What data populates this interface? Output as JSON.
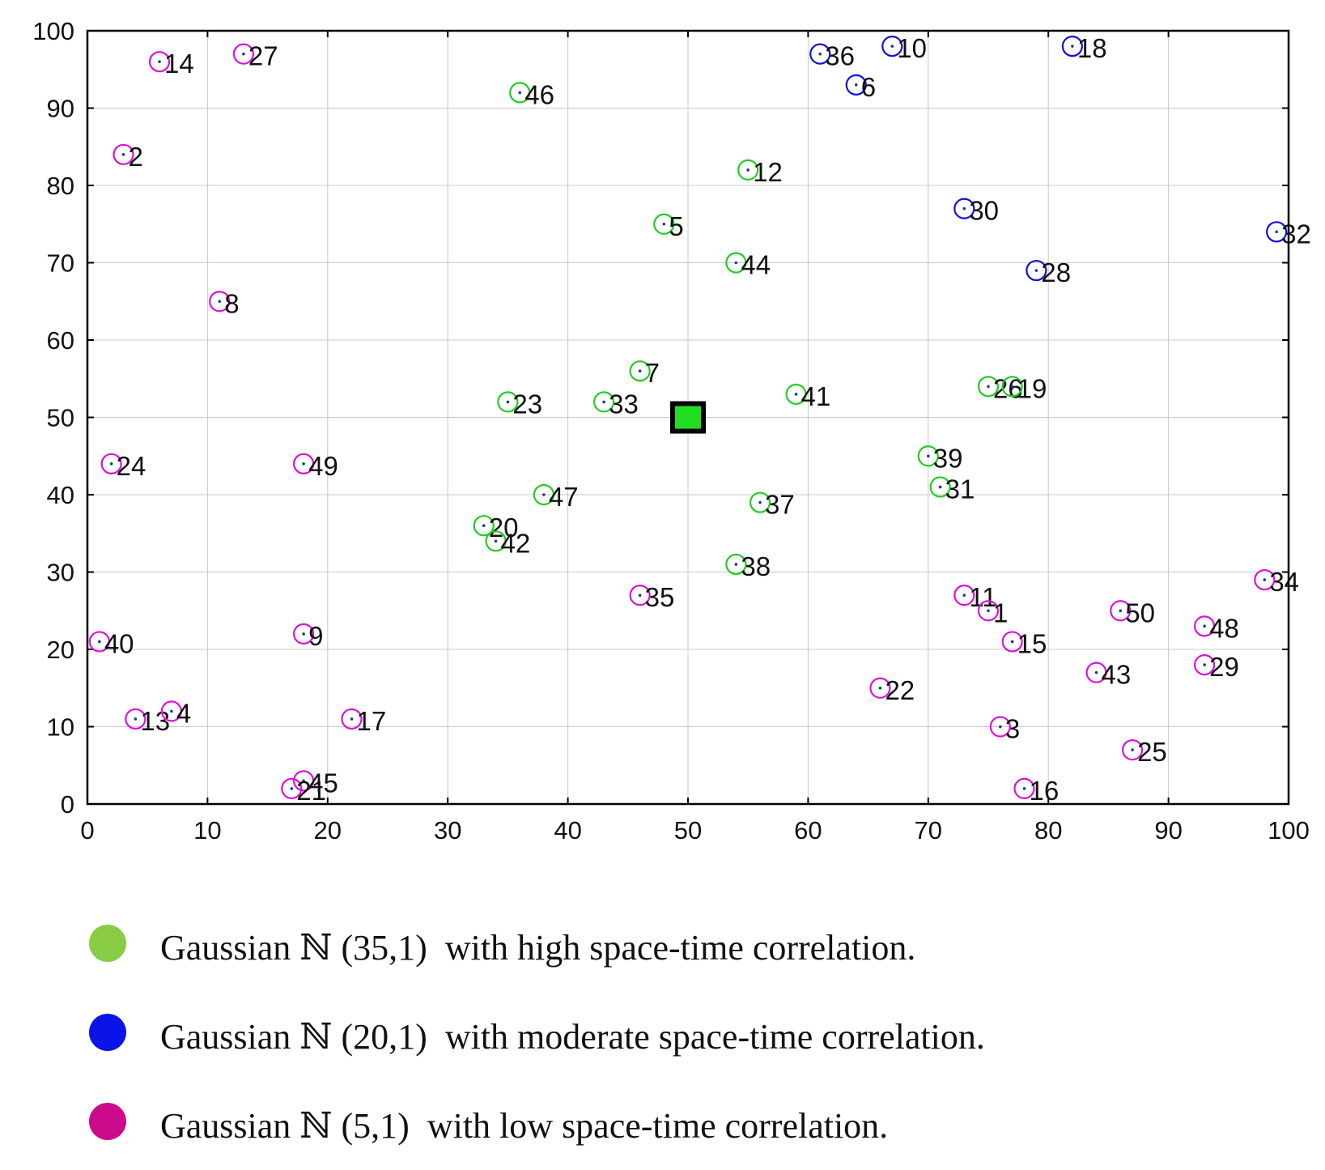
{
  "chart_data": {
    "type": "scatter",
    "xlim": [
      0,
      100
    ],
    "ylim": [
      0,
      100
    ],
    "xticks": [
      0,
      10,
      20,
      30,
      40,
      50,
      60,
      70,
      80,
      90,
      100
    ],
    "yticks": [
      0,
      10,
      20,
      30,
      40,
      50,
      60,
      70,
      80,
      90,
      100
    ],
    "grid": true,
    "sink": {
      "x": 50,
      "y": 50,
      "marker": "square",
      "color": "#22dd22"
    },
    "series": [
      {
        "name": "high",
        "color": "#22cc22",
        "points": [
          {
            "id": "46",
            "x": 36,
            "y": 92
          },
          {
            "id": "12",
            "x": 55,
            "y": 82
          },
          {
            "id": "5",
            "x": 48,
            "y": 75
          },
          {
            "id": "44",
            "x": 54,
            "y": 70
          },
          {
            "id": "7",
            "x": 46,
            "y": 56
          },
          {
            "id": "23",
            "x": 35,
            "y": 52
          },
          {
            "id": "33",
            "x": 43,
            "y": 52
          },
          {
            "id": "41",
            "x": 59,
            "y": 53
          },
          {
            "id": "26",
            "x": 75,
            "y": 54
          },
          {
            "id": "19",
            "x": 77,
            "y": 54
          },
          {
            "id": "39",
            "x": 70,
            "y": 45
          },
          {
            "id": "31",
            "x": 71,
            "y": 41
          },
          {
            "id": "47",
            "x": 38,
            "y": 40
          },
          {
            "id": "37",
            "x": 56,
            "y": 39
          },
          {
            "id": "20",
            "x": 33,
            "y": 36
          },
          {
            "id": "42",
            "x": 34,
            "y": 34
          },
          {
            "id": "38",
            "x": 54,
            "y": 31
          }
        ]
      },
      {
        "name": "moderate",
        "color": "#1111dd",
        "points": [
          {
            "id": "10",
            "x": 67,
            "y": 98
          },
          {
            "id": "18",
            "x": 82,
            "y": 98
          },
          {
            "id": "36",
            "x": 61,
            "y": 97
          },
          {
            "id": "6",
            "x": 64,
            "y": 93
          },
          {
            "id": "30",
            "x": 73,
            "y": 77
          },
          {
            "id": "32",
            "x": 99,
            "y": 74
          },
          {
            "id": "28",
            "x": 79,
            "y": 69
          }
        ]
      },
      {
        "name": "low",
        "color": "#dd11dd",
        "points": [
          {
            "id": "14",
            "x": 6,
            "y": 96
          },
          {
            "id": "27",
            "x": 13,
            "y": 97
          },
          {
            "id": "2",
            "x": 3,
            "y": 84
          },
          {
            "id": "8",
            "x": 11,
            "y": 65
          },
          {
            "id": "24",
            "x": 2,
            "y": 44
          },
          {
            "id": "49",
            "x": 18,
            "y": 44
          },
          {
            "id": "40",
            "x": 1,
            "y": 21
          },
          {
            "id": "9",
            "x": 18,
            "y": 22
          },
          {
            "id": "35",
            "x": 46,
            "y": 27
          },
          {
            "id": "13",
            "x": 4,
            "y": 11
          },
          {
            "id": "4",
            "x": 7,
            "y": 12
          },
          {
            "id": "17",
            "x": 22,
            "y": 11
          },
          {
            "id": "45",
            "x": 18,
            "y": 3
          },
          {
            "id": "21",
            "x": 17,
            "y": 2
          },
          {
            "id": "11",
            "x": 73,
            "y": 27
          },
          {
            "id": "1",
            "x": 75,
            "y": 25
          },
          {
            "id": "15",
            "x": 77,
            "y": 21
          },
          {
            "id": "22",
            "x": 66,
            "y": 15
          },
          {
            "id": "3",
            "x": 76,
            "y": 10
          },
          {
            "id": "16",
            "x": 78,
            "y": 2
          },
          {
            "id": "50",
            "x": 86,
            "y": 25
          },
          {
            "id": "43",
            "x": 84,
            "y": 17
          },
          {
            "id": "25",
            "x": 87,
            "y": 7
          },
          {
            "id": "48",
            "x": 93,
            "y": 23
          },
          {
            "id": "29",
            "x": 93,
            "y": 18
          },
          {
            "id": "34",
            "x": 98,
            "y": 29
          }
        ]
      }
    ]
  },
  "legend": [
    {
      "label": "Gaussian ℕ (35,1)  with high space-time correlation.",
      "color": "#88cc44"
    },
    {
      "label": "Gaussian ℕ (20,1)  with moderate space-time correlation.",
      "color": "#0a14e6"
    },
    {
      "label": "Gaussian ℕ (5,1)  with low space-time correlation.",
      "color": "#cc0a8c"
    }
  ]
}
